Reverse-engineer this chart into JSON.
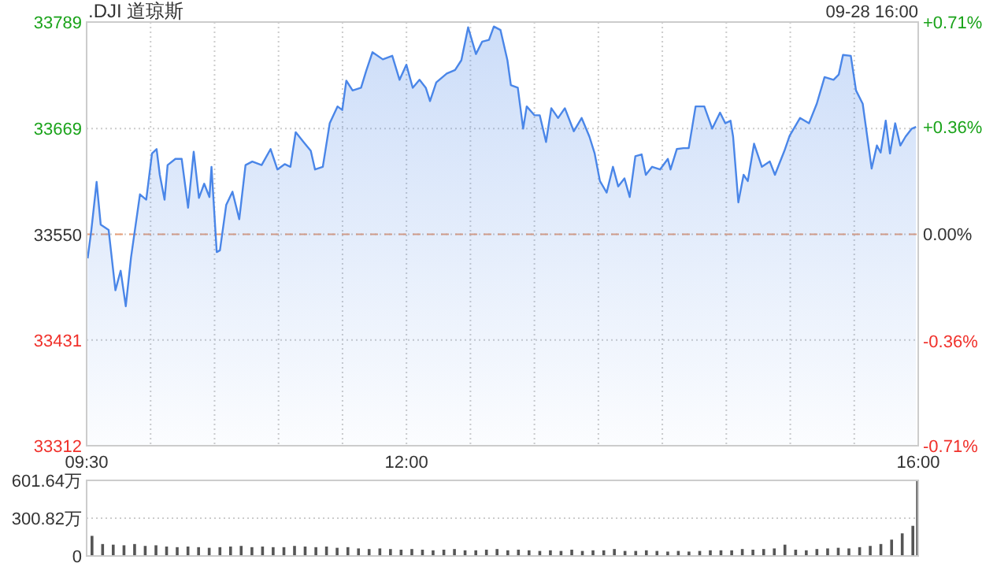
{
  "chart_data": [
    {
      "type": "area",
      "title": ".DJI 道琼斯",
      "annotations": [
        "09-28 16:00"
      ],
      "grid": true,
      "xlim": [
        9.5,
        16
      ],
      "xticks": [
        {
          "value": 9.5,
          "label": "09:30"
        },
        {
          "value": 10,
          "label": null
        },
        {
          "value": 10.5,
          "label": null
        },
        {
          "value": 11,
          "label": null
        },
        {
          "value": 11.5,
          "label": null
        },
        {
          "value": 12,
          "label": "12:00"
        },
        {
          "value": 12.5,
          "label": null
        },
        {
          "value": 13,
          "label": null
        },
        {
          "value": 13.5,
          "label": null
        },
        {
          "value": 14,
          "label": null
        },
        {
          "value": 14.5,
          "label": null
        },
        {
          "value": 15,
          "label": null
        },
        {
          "value": 15.5,
          "label": null
        },
        {
          "value": 16,
          "label": "16:00"
        }
      ],
      "ylim": [
        33312,
        33789
      ],
      "yticks": [
        33312,
        33431,
        33550,
        33669,
        33789
      ],
      "y2lim": [
        -0.71,
        0.71
      ],
      "y2ticks": [
        {
          "value": -0.71,
          "label": "-0.71%"
        },
        {
          "value": -0.36,
          "label": "-0.36%"
        },
        {
          "value": 0,
          "label": "0.00%"
        },
        {
          "value": 0.36,
          "label": "+0.36%"
        },
        {
          "value": 0.71,
          "label": "+0.71%"
        }
      ],
      "ref_lines": [
        {
          "axis": "y",
          "value": 33550,
          "color": "#e8a07a",
          "line_style": "dashed"
        }
      ],
      "series": [
        {
          "color": "#4a86e8",
          "x": [
            9.508,
            9.537,
            9.578,
            9.61,
            9.672,
            9.725,
            9.766,
            9.806,
            9.847,
            9.917,
            9.966,
            10.011,
            10.047,
            10.072,
            10.109,
            10.133,
            10.194,
            10.243,
            10.293,
            10.337,
            10.378,
            10.419,
            10.46,
            10.476,
            10.517,
            10.542,
            10.591,
            10.64,
            10.693,
            10.742,
            10.795,
            10.868,
            10.938,
            10.991,
            11.048,
            11.093,
            11.134,
            11.195,
            11.252,
            11.285,
            11.346,
            11.4,
            11.461,
            11.498,
            11.53,
            11.579,
            11.645,
            11.685,
            11.734,
            11.815,
            11.889,
            11.946,
            11.999,
            12.049,
            12.102,
            12.151,
            12.184,
            12.233,
            12.315,
            12.38,
            12.429,
            12.482,
            12.543,
            12.592,
            12.645,
            12.683,
            12.735,
            12.789,
            12.816,
            12.87,
            12.912,
            12.94,
            13.001,
            13.042,
            13.091,
            13.132,
            13.185,
            13.238,
            13.308,
            13.369,
            13.43,
            13.471,
            13.512,
            13.565,
            13.614,
            13.655,
            13.704,
            13.745,
            13.789,
            13.838,
            13.871,
            13.92,
            13.982,
            14.043,
            14.064,
            14.113,
            14.165,
            14.206,
            14.26,
            14.328,
            14.39,
            14.451,
            14.492,
            14.533,
            14.553,
            14.594,
            14.635,
            14.668,
            14.717,
            14.778,
            14.84,
            14.88,
            14.929,
            14.954,
            14.995,
            15.076,
            15.146,
            15.207,
            15.268,
            15.338,
            15.379,
            15.412,
            15.473,
            15.514,
            15.566,
            15.636,
            15.677,
            15.706,
            15.746,
            15.779,
            15.82,
            15.86,
            15.901,
            15.95,
            15.983
          ],
          "values": [
            33523,
            33555,
            33609,
            33561,
            33555,
            33487,
            33509,
            33469,
            33524,
            33595,
            33589,
            33641,
            33646,
            33617,
            33589,
            33628,
            33635,
            33635,
            33580,
            33643,
            33591,
            33607,
            33592,
            33626,
            33530,
            33532,
            33583,
            33598,
            33567,
            33628,
            33632,
            33628,
            33646,
            33623,
            33629,
            33626,
            33665,
            33654,
            33644,
            33623,
            33626,
            33675,
            33694,
            33690,
            33723,
            33712,
            33715,
            33734,
            33755,
            33747,
            33751,
            33724,
            33741,
            33715,
            33724,
            33715,
            33700,
            33721,
            33731,
            33735,
            33746,
            33783,
            33753,
            33767,
            33769,
            33784,
            33780,
            33746,
            33718,
            33715,
            33669,
            33694,
            33684,
            33684,
            33654,
            33692,
            33681,
            33692,
            33666,
            33681,
            33660,
            33641,
            33610,
            33597,
            33626,
            33604,
            33613,
            33592,
            33638,
            33640,
            33617,
            33626,
            33623,
            33635,
            33623,
            33646,
            33647,
            33647,
            33694,
            33694,
            33669,
            33687,
            33675,
            33678,
            33660,
            33586,
            33617,
            33610,
            33652,
            33626,
            33632,
            33617,
            33635,
            33644,
            33661,
            33681,
            33675,
            33697,
            33727,
            33724,
            33730,
            33752,
            33751,
            33712,
            33697,
            33624,
            33650,
            33642,
            33678,
            33641,
            33675,
            33650,
            33660,
            33669,
            33671
          ]
        }
      ]
    },
    {
      "type": "bar",
      "grid": "y",
      "tick_labels": "y",
      "xlim": [
        9.5,
        16
      ],
      "ylim": [
        0,
        601.64
      ],
      "yticks": [
        0,
        {
          "value": 300.82,
          "label": "300.82万"
        },
        {
          "value": 601.64,
          "label": "601.64万"
        }
      ],
      "series": [
        {
          "color": "#555555",
          "x": [
            9.542,
            9.625,
            9.708,
            9.792,
            9.875,
            9.958,
            10.042,
            10.125,
            10.208,
            10.292,
            10.375,
            10.458,
            10.542,
            10.625,
            10.708,
            10.792,
            10.875,
            10.958,
            11.042,
            11.125,
            11.208,
            11.292,
            11.375,
            11.458,
            11.542,
            11.625,
            11.708,
            11.792,
            11.875,
            11.958,
            12.042,
            12.125,
            12.208,
            12.292,
            12.375,
            12.458,
            12.542,
            12.625,
            12.708,
            12.792,
            12.875,
            12.958,
            13.042,
            13.125,
            13.208,
            13.292,
            13.375,
            13.458,
            13.542,
            13.625,
            13.708,
            13.792,
            13.875,
            13.958,
            14.042,
            14.125,
            14.208,
            14.292,
            14.375,
            14.458,
            14.542,
            14.625,
            14.708,
            14.792,
            14.875,
            14.958,
            15.042,
            15.125,
            15.208,
            15.292,
            15.375,
            15.458,
            15.542,
            15.625,
            15.708,
            15.792,
            15.875,
            15.958,
            15.995
          ],
          "values": [
            160,
            95,
            90,
            85,
            95,
            80,
            85,
            75,
            70,
            75,
            70,
            65,
            70,
            75,
            80,
            70,
            75,
            70,
            70,
            80,
            75,
            70,
            75,
            65,
            70,
            60,
            55,
            60,
            55,
            50,
            55,
            50,
            45,
            50,
            55,
            45,
            45,
            50,
            55,
            45,
            50,
            45,
            40,
            45,
            40,
            50,
            40,
            45,
            45,
            55,
            40,
            40,
            45,
            40,
            35,
            40,
            35,
            40,
            45,
            45,
            45,
            55,
            50,
            55,
            60,
            90,
            50,
            45,
            55,
            60,
            65,
            60,
            70,
            80,
            95,
            130,
            180,
            240,
            601.64
          ]
        }
      ]
    }
  ]
}
